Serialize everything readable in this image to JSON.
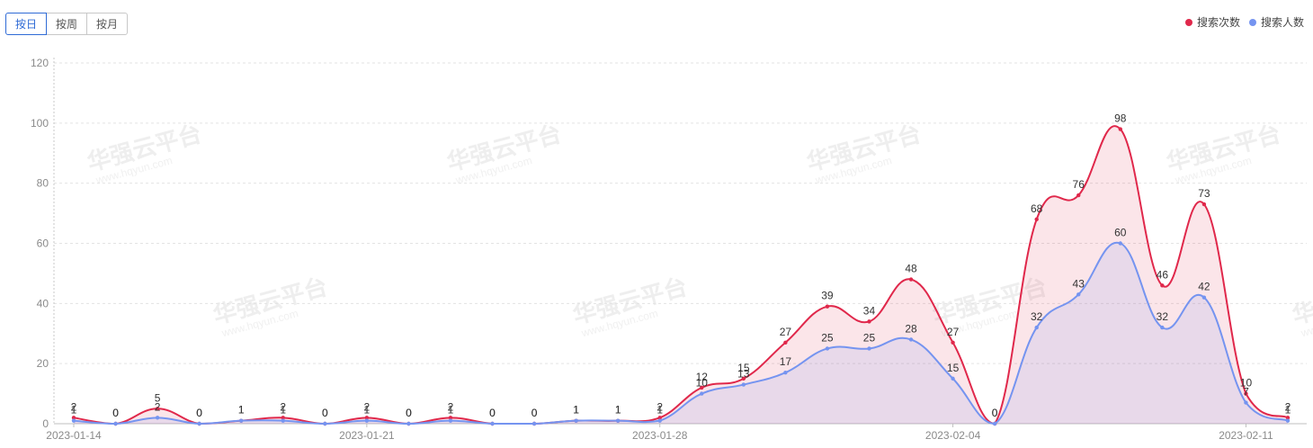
{
  "tabs": [
    {
      "label": "按日",
      "active": true
    },
    {
      "label": "按周",
      "active": false
    },
    {
      "label": "按月",
      "active": false
    }
  ],
  "watermark": {
    "text": "华强云平台",
    "url": "www.hqyun.com"
  },
  "chart_data": {
    "type": "area",
    "x": [
      "2023-01-14",
      "2023-01-15",
      "2023-01-16",
      "2023-01-17",
      "2023-01-18",
      "2023-01-19",
      "2023-01-20",
      "2023-01-21",
      "2023-01-22",
      "2023-01-23",
      "2023-01-24",
      "2023-01-25",
      "2023-01-26",
      "2023-01-27",
      "2023-01-28",
      "2023-01-29",
      "2023-01-30",
      "2023-01-31",
      "2023-02-01",
      "2023-02-02",
      "2023-02-03",
      "2023-02-04",
      "2023-02-05",
      "2023-02-06",
      "2023-02-07",
      "2023-02-08",
      "2023-02-09",
      "2023-02-10",
      "2023-02-11",
      "2023-02-12"
    ],
    "x_tick_labels": [
      "2023-01-14",
      "2023-01-21",
      "2023-01-28",
      "2023-02-04",
      "2023-02-11"
    ],
    "series": [
      {
        "name": "搜索次数",
        "color": "#e0284b",
        "values": [
          2,
          0,
          5,
          0,
          1,
          2,
          0,
          2,
          0,
          2,
          0,
          0,
          1,
          1,
          2,
          12,
          15,
          27,
          39,
          34,
          48,
          27,
          0,
          68,
          76,
          98,
          46,
          73,
          10,
          2
        ]
      },
      {
        "name": "搜索人数",
        "color": "#7594f0",
        "values": [
          1,
          0,
          2,
          0,
          1,
          1,
          0,
          1,
          0,
          1,
          0,
          0,
          1,
          1,
          1,
          10,
          13,
          17,
          25,
          25,
          28,
          15,
          0,
          32,
          43,
          60,
          32,
          42,
          7,
          1
        ]
      }
    ],
    "ylim": [
      0,
      120
    ],
    "y_ticks": [
      0,
      20,
      40,
      60,
      80,
      100,
      120
    ],
    "grid": true,
    "legend": "top-right",
    "data_labels": true
  }
}
